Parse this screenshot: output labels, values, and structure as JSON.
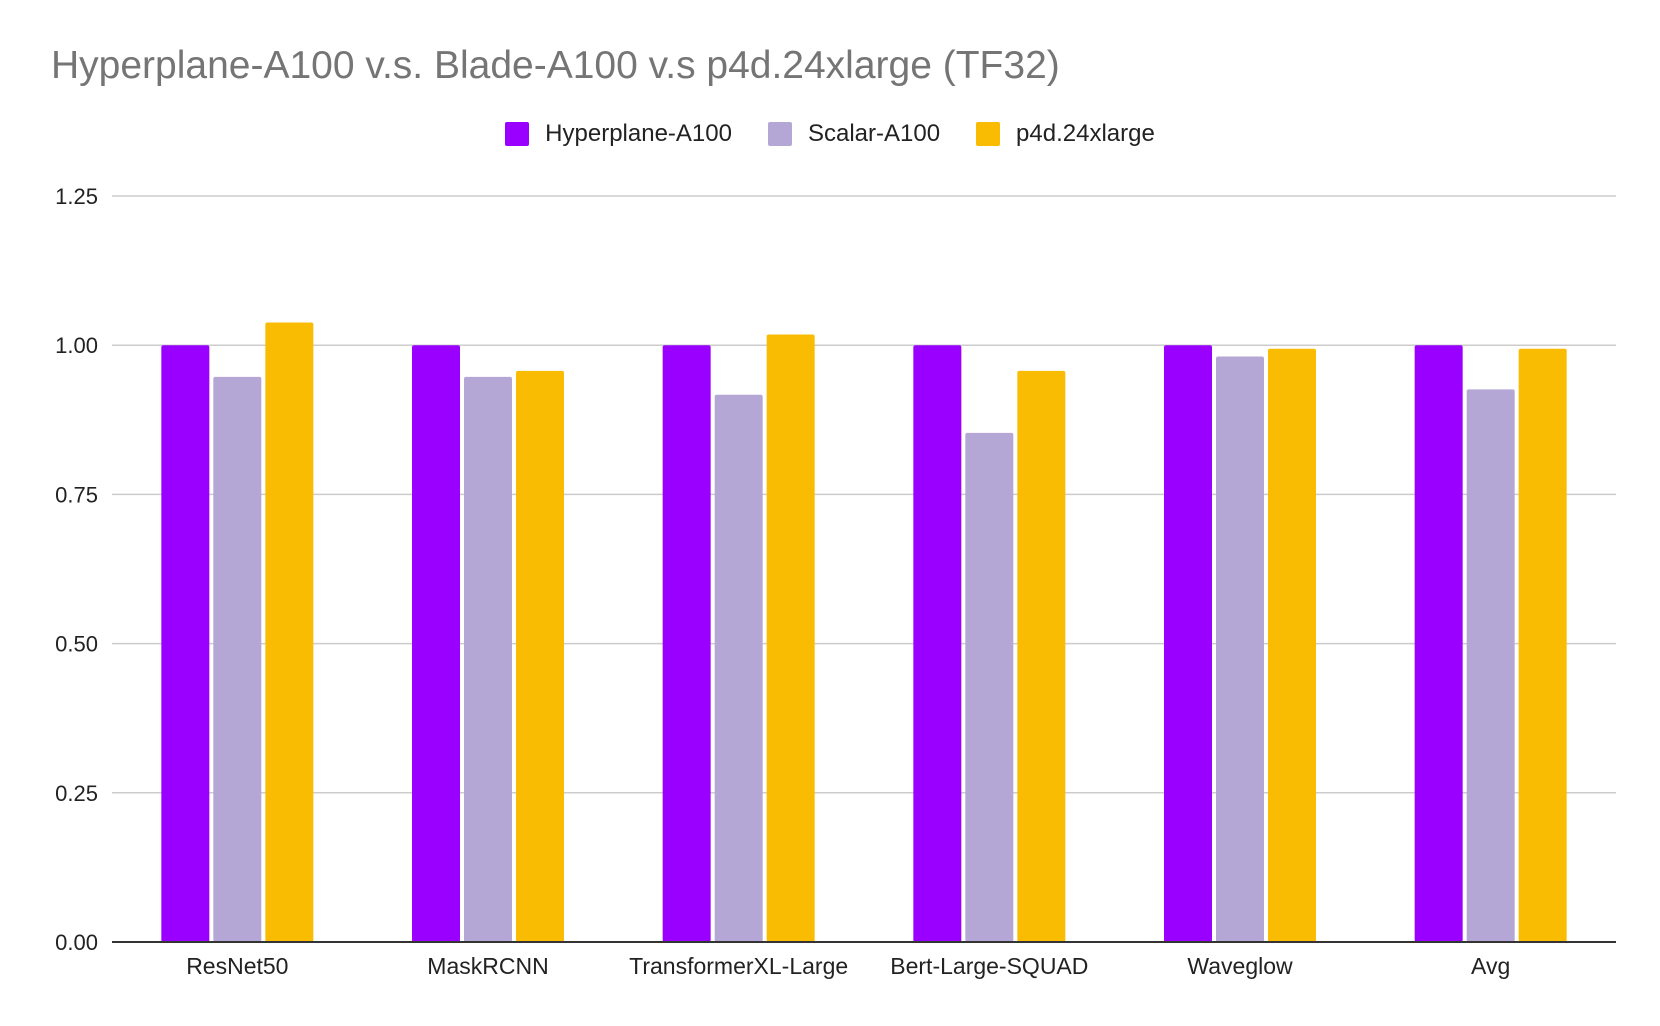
{
  "chart_data": {
    "type": "bar",
    "title": "Hyperplane-A100 v.s. Blade-A100 v.s p4d.24xlarge (TF32)",
    "xlabel": "",
    "ylabel": "",
    "ylim": [
      0,
      1.25
    ],
    "yticks": [
      "0.00",
      "0.25",
      "0.50",
      "0.75",
      "1.00",
      "1.25"
    ],
    "ytick_values": [
      0,
      0.25,
      0.5,
      0.75,
      1.0,
      1.25
    ],
    "grid": true,
    "legend_position": "top-center",
    "categories": [
      "ResNet50",
      "MaskRCNN",
      "TransformerXL-Large",
      "Bert-Large-SQUAD",
      "Waveglow",
      "Avg"
    ],
    "series": [
      {
        "name": "Hyperplane-A100",
        "color": "#9900ff",
        "values": [
          1.0,
          1.0,
          1.0,
          1.0,
          1.0,
          1.0
        ]
      },
      {
        "name": "Scalar-A100",
        "color": "#b4a7d6",
        "values": [
          0.947,
          0.947,
          0.917,
          0.853,
          0.981,
          0.926
        ]
      },
      {
        "name": "p4d.24xlarge",
        "color": "#f9bc02",
        "values": [
          1.038,
          0.957,
          1.018,
          0.957,
          0.994,
          0.994
        ]
      }
    ]
  }
}
